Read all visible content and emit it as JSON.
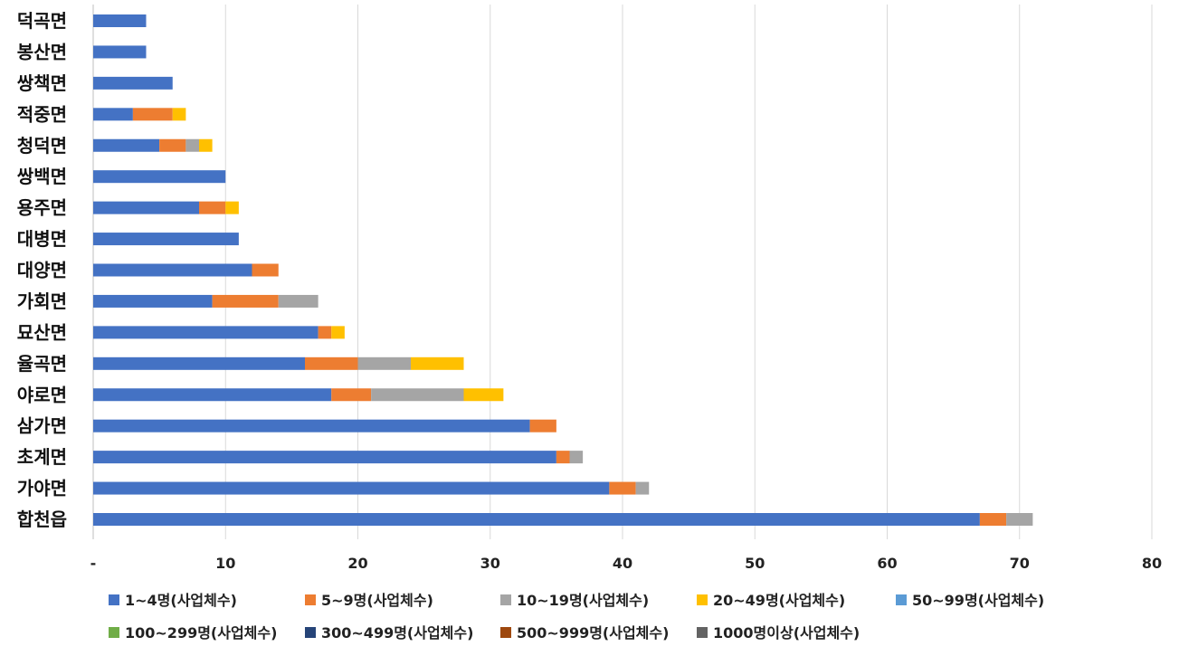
{
  "chart_data": {
    "type": "bar",
    "orientation": "horizontal",
    "stacked": true,
    "title": "",
    "xlabel": "",
    "ylabel": "",
    "xlim": [
      0,
      80
    ],
    "xticks": [
      "-",
      "10",
      "20",
      "30",
      "40",
      "50",
      "60",
      "70",
      "80"
    ],
    "grid": true,
    "legend_position": "bottom",
    "categories": [
      "덕곡면",
      "봉산면",
      "쌍책면",
      "적중면",
      "청덕면",
      "쌍백면",
      "용주면",
      "대병면",
      "대양면",
      "가회면",
      "묘산면",
      "율곡면",
      "야로면",
      "삼가면",
      "초계면",
      "가야면",
      "합천읍"
    ],
    "series": [
      {
        "name": "1~4명(사업체수)",
        "color": "#4472C4",
        "values": [
          4,
          4,
          6,
          3,
          5,
          10,
          8,
          11,
          12,
          9,
          17,
          16,
          18,
          33,
          35,
          39,
          67
        ]
      },
      {
        "name": "5~9명(사업체수)",
        "color": "#ED7D31",
        "values": [
          0,
          0,
          0,
          3,
          2,
          0,
          2,
          0,
          2,
          5,
          1,
          4,
          3,
          2,
          1,
          2,
          2
        ]
      },
      {
        "name": "10~19명(사업체수)",
        "color": "#A5A5A5",
        "values": [
          0,
          0,
          0,
          0,
          1,
          0,
          0,
          0,
          0,
          3,
          0,
          4,
          7,
          0,
          1,
          1,
          2
        ]
      },
      {
        "name": "20~49명(사업체수)",
        "color": "#FFC000",
        "values": [
          0,
          0,
          0,
          1,
          1,
          0,
          1,
          0,
          0,
          0,
          1,
          4,
          3,
          0,
          0,
          0,
          0
        ]
      },
      {
        "name": "50~99명(사업체수)",
        "color": "#5B9BD5",
        "values": [
          0,
          0,
          0,
          0,
          0,
          0,
          0,
          0,
          0,
          0,
          0,
          0,
          0,
          0,
          0,
          0,
          0
        ]
      },
      {
        "name": "100~299명(사업체수)",
        "color": "#70AD47",
        "values": [
          0,
          0,
          0,
          0,
          0,
          0,
          0,
          0,
          0,
          0,
          0,
          0,
          0,
          0,
          0,
          0,
          0
        ]
      },
      {
        "name": "300~499명(사업체수)",
        "color": "#264478",
        "values": [
          0,
          0,
          0,
          0,
          0,
          0,
          0,
          0,
          0,
          0,
          0,
          0,
          0,
          0,
          0,
          0,
          0
        ]
      },
      {
        "name": "500~999명(사업체수)",
        "color": "#9E480E",
        "values": [
          0,
          0,
          0,
          0,
          0,
          0,
          0,
          0,
          0,
          0,
          0,
          0,
          0,
          0,
          0,
          0,
          0
        ]
      },
      {
        "name": "1000명이상(사업체수)",
        "color": "#636363",
        "values": [
          0,
          0,
          0,
          0,
          0,
          0,
          0,
          0,
          0,
          0,
          0,
          0,
          0,
          0,
          0,
          0,
          0
        ]
      }
    ]
  }
}
